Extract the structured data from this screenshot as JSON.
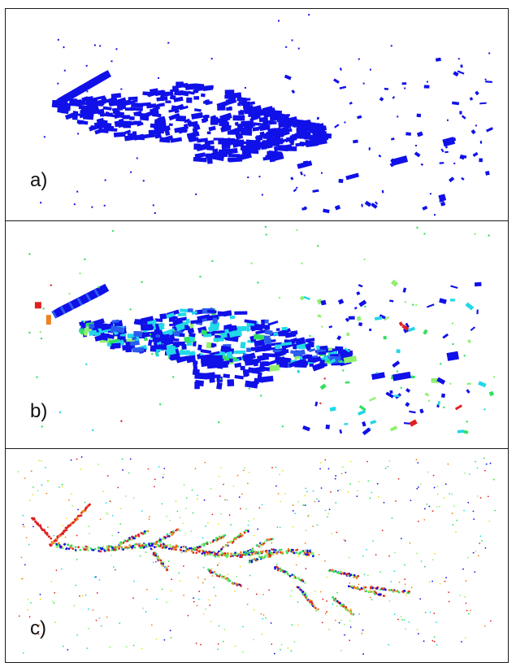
{
  "panels": [
    {
      "id": "a",
      "label": "a)",
      "style": "voxel-occupancy-blue"
    },
    {
      "id": "b",
      "label": "b)",
      "style": "voxel-colored-by-value"
    },
    {
      "id": "c",
      "label": "c)",
      "style": "point-cloud-colored"
    }
  ],
  "colors": {
    "blue": "#1010e8",
    "mid_blue": "#2a5cf0",
    "cyan": "#20d8e8",
    "green": "#30e060",
    "light_green": "#90f070",
    "yellow": "#e8e020",
    "orange": "#f08020",
    "red": "#e02020",
    "frame": "#1a1a1a"
  }
}
